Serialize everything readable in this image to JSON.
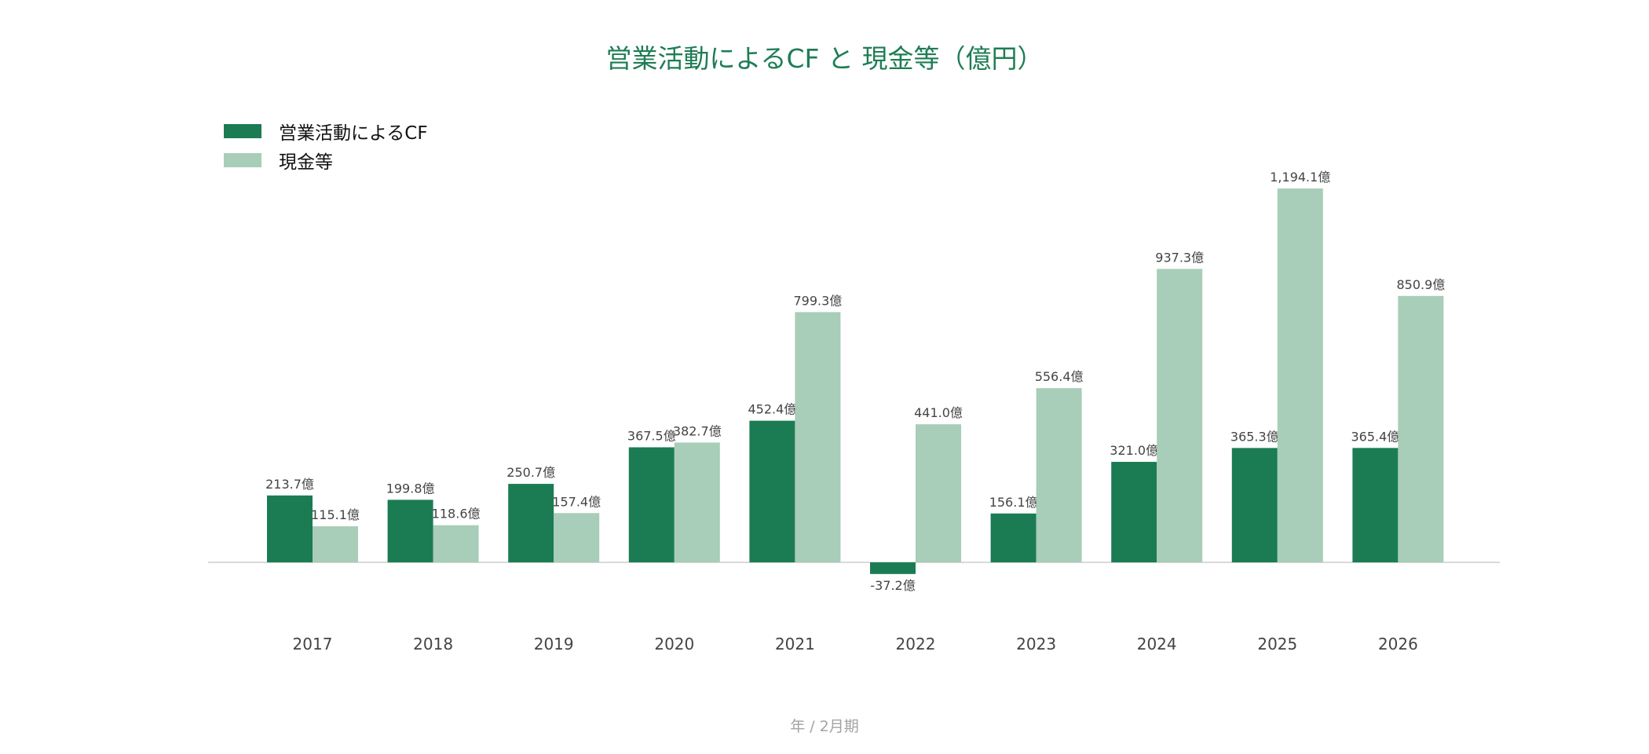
{
  "chart_data": {
    "type": "bar",
    "title": "営業活動によるCF と 現金等（億円）",
    "xlabel": "年 / 2月期",
    "ylabel": "",
    "categories": [
      "2017",
      "2018",
      "2019",
      "2020",
      "2021",
      "2022",
      "2023",
      "2024",
      "2025",
      "2026"
    ],
    "series": [
      {
        "name": "営業活動によるCF",
        "color": "#1b7c53",
        "values": [
          213.7,
          199.8,
          250.7,
          367.5,
          452.4,
          -37.2,
          156.1,
          321.0,
          365.3,
          365.4
        ],
        "labels": [
          "213.7億",
          "199.8億",
          "250.7億",
          "367.5億",
          "452.4億",
          "-37.2億",
          "156.1億",
          "321.0億",
          "365.3億",
          "365.4億"
        ]
      },
      {
        "name": "現金等",
        "color": "#a8cdb8",
        "values": [
          115.1,
          118.6,
          157.4,
          382.7,
          799.3,
          441.0,
          556.4,
          937.3,
          1194.1,
          850.9
        ],
        "labels": [
          "115.1億",
          "118.6億",
          "157.4億",
          "382.7億",
          "799.3億",
          "441.0億",
          "556.4億",
          "937.3億",
          "1,194.1億",
          "850.9億"
        ]
      }
    ],
    "ylim": [
      -110,
      1330
    ],
    "grid": false,
    "legend_position": "top-left",
    "baseline_color": "#d9d9d9",
    "label_color": "#444444",
    "tick_color": "#444444"
  }
}
